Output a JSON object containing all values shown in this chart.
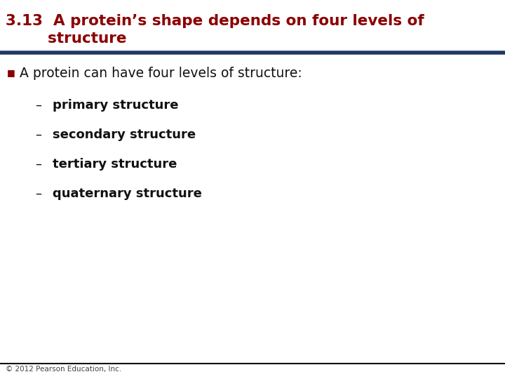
{
  "title_line1": "3.13  A protein’s shape depends on four levels of",
  "title_line2": "        structure",
  "title_color": "#8B0000",
  "title_fontsize": 15.5,
  "separator_color": "#1F3864",
  "separator_linewidth": 4.0,
  "bullet_color": "#8B0000",
  "bullet_text": "A protein can have four levels of structure:",
  "bullet_fontsize": 13.5,
  "sub_items": [
    "primary structure",
    "secondary structure",
    "tertiary structure",
    "quaternary structure"
  ],
  "sub_fontsize": 13,
  "sub_color": "#111111",
  "dash_color": "#111111",
  "background_color": "#FFFFFF",
  "footer_text": "© 2012 Pearson Education, Inc.",
  "footer_fontsize": 7.5,
  "footer_color": "#444444",
  "footer_line_color": "#111111"
}
